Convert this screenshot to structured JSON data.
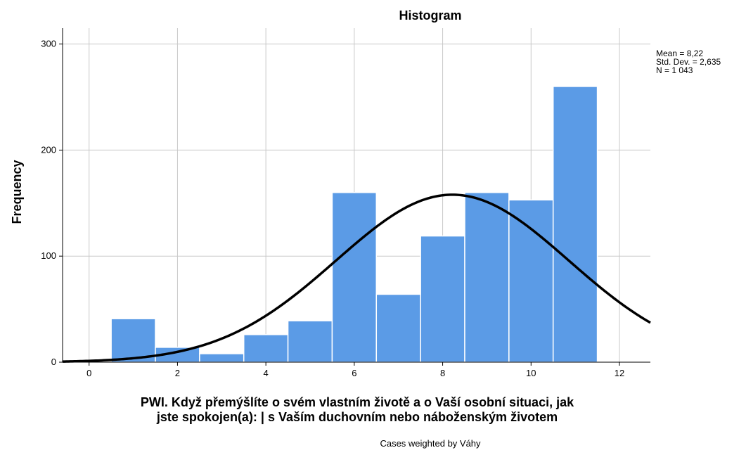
{
  "chart_data": {
    "type": "bar",
    "title": "Histogram",
    "ylabel": "Frequency",
    "xlabel_lines": [
      "PWI. Když přemýšlíte o svém vlastním životě a o Vaší osobní situaci, jak",
      "jste spokojen(a): | s Vaším duchovním nebo náboženským životem"
    ],
    "footnote": "Cases weighted by Váhy",
    "stats": [
      "Mean = 8,22",
      "Std. Dev. = 2,635",
      "N = 1 043"
    ],
    "xlim": [
      -0.6,
      12.7
    ],
    "ylim": [
      0,
      315
    ],
    "xticks": [
      0,
      2,
      4,
      6,
      8,
      10,
      12
    ],
    "yticks": [
      0,
      100,
      200,
      300
    ],
    "bin_width": 1,
    "bins": [
      1,
      2,
      3,
      4,
      5,
      6,
      7,
      8,
      9,
      10,
      11
    ],
    "values": [
      41,
      14,
      8,
      26,
      39,
      160,
      64,
      119,
      160,
      153,
      260
    ],
    "normal_curve": {
      "mean": 8.22,
      "sd": 2.635,
      "n": 1043
    },
    "grid": true,
    "bar_color": "#5b9be6",
    "curve_color": "#000000"
  }
}
